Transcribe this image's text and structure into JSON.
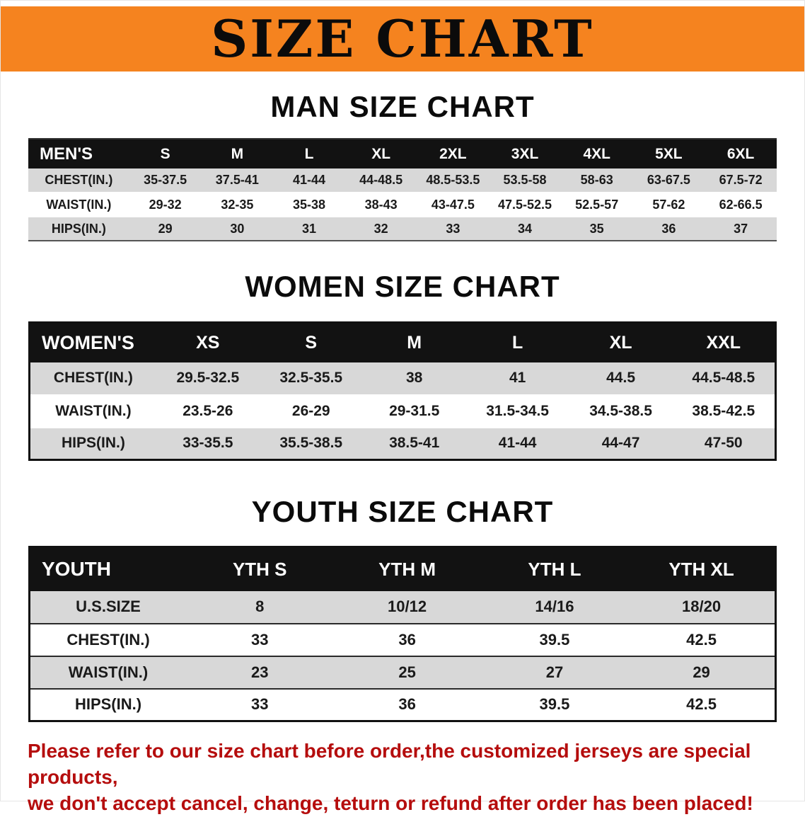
{
  "banner": {
    "title": "SIZE CHART"
  },
  "sections": {
    "men": {
      "heading": "MAN SIZE CHART",
      "table": {
        "header": [
          "MEN'S",
          "S",
          "M",
          "L",
          "XL",
          "2XL",
          "3XL",
          "4XL",
          "5XL",
          "6XL"
        ],
        "rows": [
          [
            "CHEST(IN.)",
            "35-37.5",
            "37.5-41",
            "41-44",
            "44-48.5",
            "48.5-53.5",
            "53.5-58",
            "58-63",
            "63-67.5",
            "67.5-72"
          ],
          [
            "WAIST(IN.)",
            "29-32",
            "32-35",
            "35-38",
            "38-43",
            "43-47.5",
            "47.5-52.5",
            "52.5-57",
            "57-62",
            "62-66.5"
          ],
          [
            "HIPS(IN.)",
            "29",
            "30",
            "31",
            "32",
            "33",
            "34",
            "35",
            "36",
            "37"
          ]
        ]
      }
    },
    "women": {
      "heading": "WOMEN SIZE CHART",
      "table": {
        "header": [
          "WOMEN'S",
          "XS",
          "S",
          "M",
          "L",
          "XL",
          "XXL"
        ],
        "rows": [
          [
            "CHEST(IN.)",
            "29.5-32.5",
            "32.5-35.5",
            "38",
            "41",
            "44.5",
            "44.5-48.5"
          ],
          [
            "WAIST(IN.)",
            "23.5-26",
            "26-29",
            "29-31.5",
            "31.5-34.5",
            "34.5-38.5",
            "38.5-42.5"
          ],
          [
            "HIPS(IN.)",
            "33-35.5",
            "35.5-38.5",
            "38.5-41",
            "41-44",
            "44-47",
            "47-50"
          ]
        ]
      }
    },
    "youth": {
      "heading": "YOUTH SIZE CHART",
      "table": {
        "header": [
          "YOUTH",
          "YTH S",
          "YTH M",
          "YTH L",
          "YTH XL"
        ],
        "rows": [
          [
            "U.S.SIZE",
            "8",
            "10/12",
            "14/16",
            "18/20"
          ],
          [
            "CHEST(IN.)",
            "33",
            "36",
            "39.5",
            "42.5"
          ],
          [
            "WAIST(IN.)",
            "23",
            "25",
            "27",
            "29"
          ],
          [
            "HIPS(IN.)",
            "33",
            "36",
            "39.5",
            "42.5"
          ]
        ]
      }
    }
  },
  "footer": {
    "line1": "Please refer to our size chart before order,the customized jerseys are special products,",
    "line2": "we don't accept cancel, change, teturn or refund after order has been placed!"
  },
  "colors": {
    "banner_bg": "#f5831f",
    "header_bg": "#121212",
    "stripe": "#d8d8d8",
    "disclaimer": "#b50d0d"
  }
}
